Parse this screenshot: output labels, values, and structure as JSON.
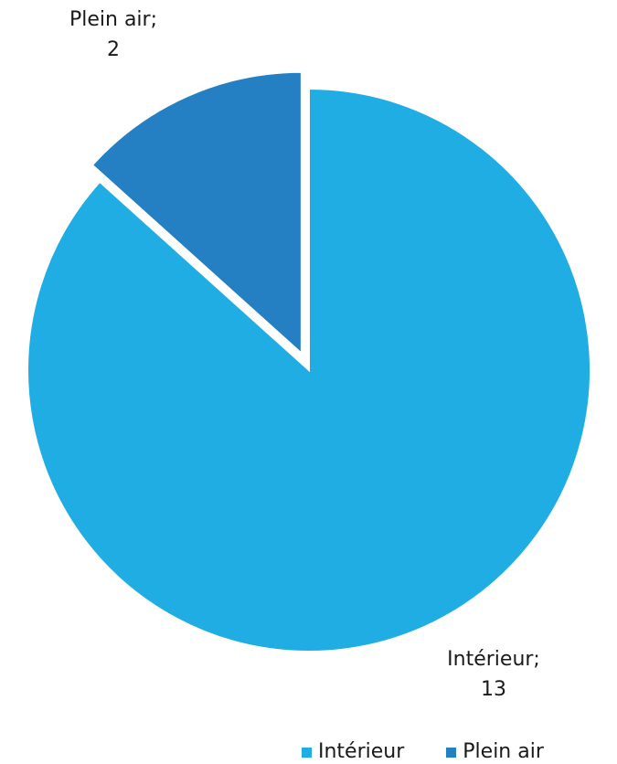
{
  "chart_data": {
    "type": "pie",
    "categories": [
      "Intérieur",
      "Plein air"
    ],
    "values": [
      13,
      2
    ],
    "colors": [
      "#1fade3",
      "#2480c3"
    ],
    "data_labels": [
      {
        "name": "Intérieur;",
        "value": "13"
      },
      {
        "name": "Plein air;",
        "value": "2"
      }
    ],
    "exploded": [
      "Plein air"
    ],
    "legend_position": "bottom"
  },
  "legend": {
    "items": [
      {
        "label": "Intérieur",
        "color": "#1fade3"
      },
      {
        "label": "Plein air",
        "color": "#2480c3"
      }
    ]
  }
}
